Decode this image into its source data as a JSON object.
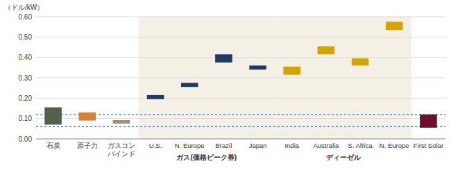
{
  "chart_data": {
    "type": "bar",
    "ylabel": "（ドル/kW）",
    "categories": [
      "石炭",
      "原子力",
      "ガスコン\nバインド",
      "U.S.",
      "N. Europe",
      "Brazil",
      "Japan",
      "India",
      "Australia",
      "S. Africa",
      "N. Europe",
      "First Solar"
    ],
    "groups": [
      null,
      null,
      null,
      "ガス(価格ピーク券)",
      "ガス(価格ピーク券)",
      "ガス(価格ピーク券)",
      "ガス(価格ピーク券)",
      "ディーゼル",
      "ディーゼル",
      "ディーゼル",
      "ディーゼル",
      null
    ],
    "low": [
      0.07,
      0.09,
      0.075,
      0.195,
      0.255,
      0.375,
      0.34,
      0.315,
      0.415,
      0.36,
      0.535,
      0.055
    ],
    "high": [
      0.155,
      0.13,
      0.092,
      0.215,
      0.275,
      0.415,
      0.36,
      0.355,
      0.455,
      0.395,
      0.575,
      0.12
    ],
    "colors": [
      "#555f4e",
      "#d4813a",
      "#a09078",
      "#1f3864",
      "#1f3864",
      "#1f3864",
      "#1f3864",
      "#d4a500",
      "#d4a500",
      "#d4a500",
      "#d4a500",
      "#6b0f2a"
    ],
    "reference_lines": [
      0.12,
      0.06
    ],
    "ylim": [
      0.0,
      0.6
    ],
    "yticks": [
      {
        "value": 0.0,
        "label": "0.00"
      },
      {
        "value": 0.1,
        "label": "0.10"
      },
      {
        "value": 0.2,
        "label": "0.20"
      },
      {
        "value": 0.3,
        "label": "0.30"
      },
      {
        "value": 0.4,
        "label": "0.40"
      },
      {
        "value": 0.5,
        "label": "0.50"
      },
      {
        "value": 0.6,
        "label": "0.60"
      }
    ],
    "grid": true
  }
}
